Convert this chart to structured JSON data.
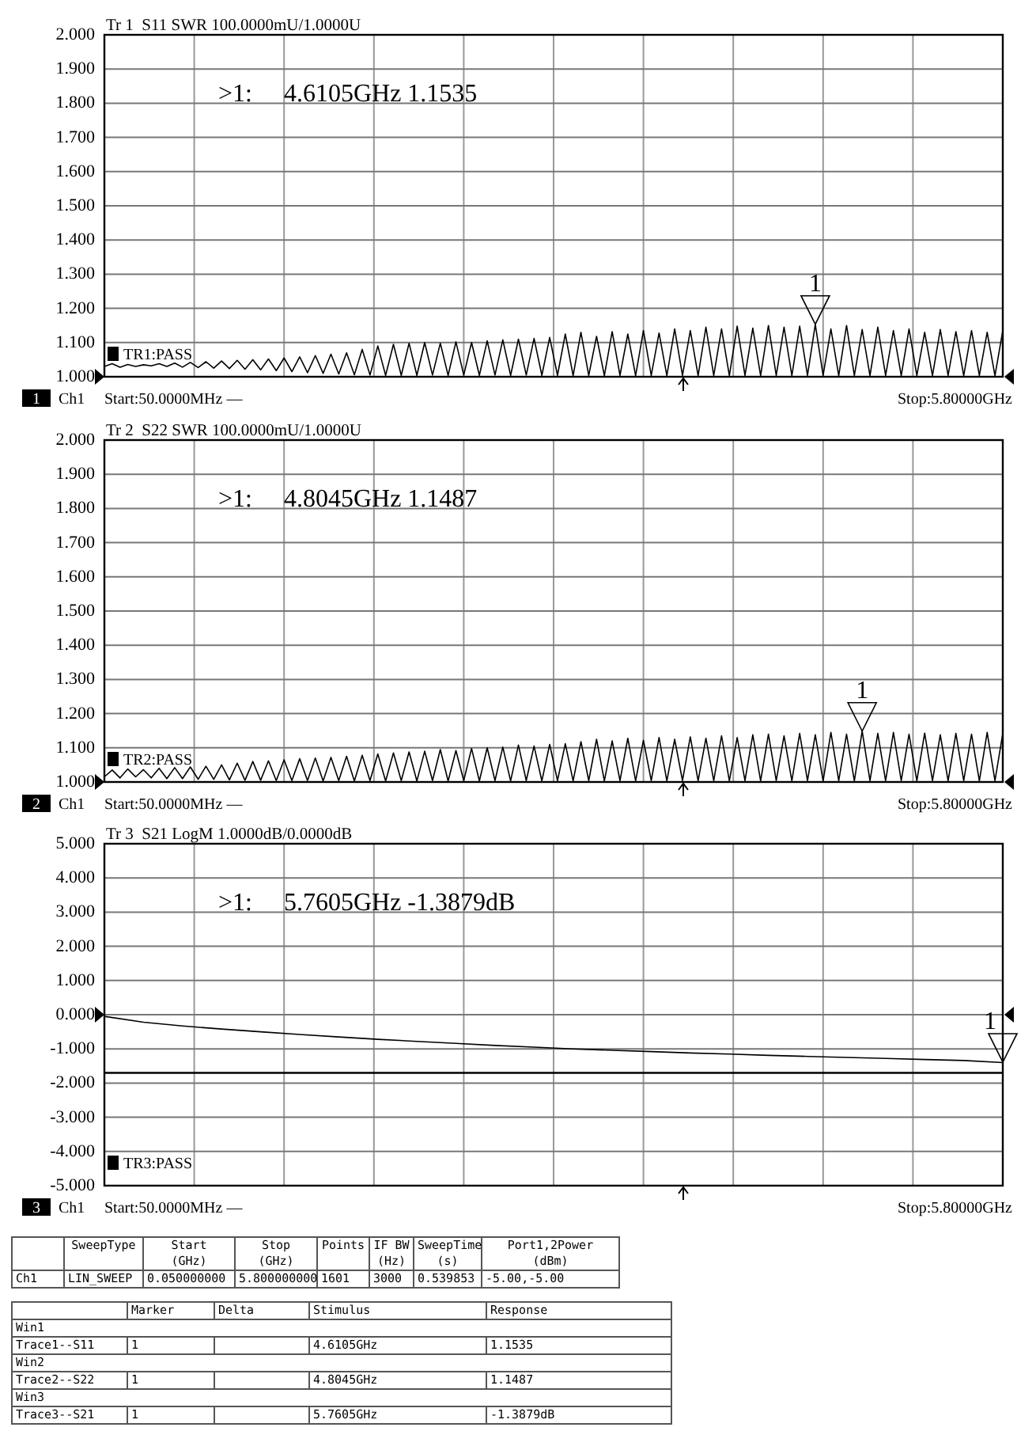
{
  "chart_data": [
    {
      "type": "line",
      "title": "Tr 1  S11 SWR 100.0000mU/1.0000U",
      "grid": true,
      "tick_labels": "y",
      "ylim": [
        1.0,
        2.0
      ],
      "yticks": [
        {
          "value": 1.0,
          "label": "1.000"
        },
        {
          "value": 1.1,
          "label": "1.100"
        },
        {
          "value": 1.2,
          "label": "1.200"
        },
        {
          "value": 1.3,
          "label": "1.300"
        },
        {
          "value": 1.4,
          "label": "1.400"
        },
        {
          "value": 1.5,
          "label": "1.500"
        },
        {
          "value": 1.6,
          "label": "1.600"
        },
        {
          "value": 1.7,
          "label": "1.700"
        },
        {
          "value": 1.8,
          "label": "1.800"
        },
        {
          "value": 1.9,
          "label": "1.900"
        },
        {
          "value": 2.0,
          "label": "2.000"
        }
      ],
      "categories": [
        null,
        null,
        null,
        null,
        null,
        null,
        null,
        null,
        null,
        null,
        null,
        null,
        null,
        null,
        null,
        null,
        null,
        null,
        null,
        null,
        null,
        null,
        null,
        null,
        null,
        null,
        null,
        null,
        null,
        null,
        null,
        null,
        null,
        null,
        null,
        null,
        null,
        null,
        null,
        null,
        null,
        null,
        null,
        null,
        null,
        null,
        null,
        null,
        null,
        null,
        null,
        null,
        null,
        null,
        null,
        null,
        null,
        null,
        null,
        null,
        null,
        null,
        null,
        null,
        null,
        null,
        null,
        null,
        null,
        null,
        null,
        null,
        null,
        null,
        null,
        null,
        null,
        null,
        null,
        null,
        null,
        null,
        null,
        null,
        null,
        null,
        null,
        null,
        null,
        null,
        null,
        null,
        null,
        null,
        null,
        null,
        null,
        null,
        null,
        null,
        null,
        null,
        null,
        null,
        null,
        null,
        null,
        null,
        null,
        null,
        null,
        null,
        null,
        null,
        null,
        null
      ],
      "series": [
        {
          "color": "#000000",
          "values": [
            1.03,
            1.038,
            1.028,
            1.036,
            1.03,
            1.035,
            1.032,
            1.038,
            1.03,
            1.04,
            1.028,
            1.042,
            1.027,
            1.044,
            1.025,
            1.046,
            1.024,
            1.048,
            1.022,
            1.05,
            1.02,
            1.052,
            1.018,
            1.055,
            1.015,
            1.058,
            1.012,
            1.062,
            1.01,
            1.066,
            1.008,
            1.07,
            1.006,
            1.08,
            1.005,
            1.09,
            1.004,
            1.095,
            1.004,
            1.098,
            1.004,
            1.1,
            1.005,
            1.098,
            1.004,
            1.102,
            1.005,
            1.1,
            1.004,
            1.105,
            1.005,
            1.108,
            1.004,
            1.11,
            1.005,
            1.112,
            1.004,
            1.115,
            1.004,
            1.125,
            1.003,
            1.13,
            1.004,
            1.118,
            1.003,
            1.132,
            1.004,
            1.125,
            1.003,
            1.135,
            1.004,
            1.128,
            1.003,
            1.14,
            1.004,
            1.135,
            1.003,
            1.145,
            1.004,
            1.14,
            1.003,
            1.148,
            1.004,
            1.142,
            1.003,
            1.15,
            1.004,
            1.145,
            1.003,
            1.148,
            1.004,
            1.153,
            1.004,
            1.14,
            1.003,
            1.15,
            1.004,
            1.138,
            1.003,
            1.145,
            1.004,
            1.135,
            1.003,
            1.14,
            1.004,
            1.13,
            1.003,
            1.138,
            1.004,
            1.132,
            1.003,
            1.135,
            1.004,
            1.13,
            1.003,
            1.135
          ]
        }
      ],
      "annotations": [
        ">1:     4.6105GHz 1.1535",
        {
          "text": "1",
          "y": 1.1535
        },
        "TR1:PASS",
        "1",
        "Ch1",
        "Start:50.0000MHz —",
        "Stop:5.80000GHz"
      ]
    },
    {
      "type": "line",
      "title": "Tr 2  S22 SWR 100.0000mU/1.0000U",
      "grid": true,
      "tick_labels": "y",
      "ylim": [
        1.0,
        2.0
      ],
      "yticks": [
        {
          "value": 1.0,
          "label": "1.000"
        },
        {
          "value": 1.1,
          "label": "1.100"
        },
        {
          "value": 1.2,
          "label": "1.200"
        },
        {
          "value": 1.3,
          "label": "1.300"
        },
        {
          "value": 1.4,
          "label": "1.400"
        },
        {
          "value": 1.5,
          "label": "1.500"
        },
        {
          "value": 1.6,
          "label": "1.600"
        },
        {
          "value": 1.7,
          "label": "1.700"
        },
        {
          "value": 1.8,
          "label": "1.800"
        },
        {
          "value": 1.9,
          "label": "1.900"
        },
        {
          "value": 2.0,
          "label": "2.000"
        }
      ],
      "categories": [
        null,
        null,
        null,
        null,
        null,
        null,
        null,
        null,
        null,
        null,
        null,
        null,
        null,
        null,
        null,
        null,
        null,
        null,
        null,
        null,
        null,
        null,
        null,
        null,
        null,
        null,
        null,
        null,
        null,
        null,
        null,
        null,
        null,
        null,
        null,
        null,
        null,
        null,
        null,
        null,
        null,
        null,
        null,
        null,
        null,
        null,
        null,
        null,
        null,
        null,
        null,
        null,
        null,
        null,
        null,
        null,
        null,
        null,
        null,
        null,
        null,
        null,
        null,
        null,
        null,
        null,
        null,
        null,
        null,
        null,
        null,
        null,
        null,
        null,
        null,
        null,
        null,
        null,
        null,
        null,
        null,
        null,
        null,
        null,
        null,
        null,
        null,
        null,
        null,
        null,
        null,
        null,
        null,
        null,
        null,
        null,
        null,
        null,
        null,
        null,
        null,
        null,
        null,
        null,
        null,
        null,
        null,
        null,
        null,
        null,
        null,
        null,
        null,
        null,
        null,
        null
      ],
      "series": [
        {
          "color": "#000000",
          "values": [
            1.015,
            1.035,
            1.012,
            1.038,
            1.015,
            1.036,
            1.012,
            1.04,
            1.01,
            1.042,
            1.01,
            1.044,
            1.008,
            1.046,
            1.008,
            1.05,
            1.006,
            1.055,
            1.005,
            1.06,
            1.005,
            1.062,
            1.004,
            1.065,
            1.004,
            1.068,
            1.004,
            1.07,
            1.003,
            1.072,
            1.004,
            1.075,
            1.003,
            1.078,
            1.004,
            1.082,
            1.003,
            1.085,
            1.004,
            1.088,
            1.003,
            1.09,
            1.004,
            1.095,
            1.003,
            1.092,
            1.004,
            1.098,
            1.003,
            1.1,
            1.004,
            1.102,
            1.003,
            1.108,
            1.004,
            1.105,
            1.003,
            1.11,
            1.004,
            1.112,
            1.003,
            1.118,
            1.004,
            1.125,
            1.003,
            1.12,
            1.004,
            1.128,
            1.003,
            1.122,
            1.004,
            1.13,
            1.003,
            1.125,
            1.004,
            1.132,
            1.003,
            1.128,
            1.004,
            1.135,
            1.003,
            1.13,
            1.004,
            1.138,
            1.003,
            1.14,
            1.004,
            1.135,
            1.003,
            1.142,
            1.004,
            1.138,
            1.003,
            1.145,
            1.004,
            1.14,
            1.003,
            1.149,
            1.004,
            1.142,
            1.003,
            1.145,
            1.004,
            1.14,
            1.003,
            1.143,
            1.004,
            1.138,
            1.003,
            1.142,
            1.004,
            1.14,
            1.003,
            1.145,
            1.004,
            1.142
          ]
        }
      ],
      "annotations": [
        ">1:     4.8045GHz 1.1487",
        {
          "text": "1",
          "y": 1.1487
        },
        "TR2:PASS",
        "2",
        "Ch1",
        "Start:50.0000MHz —",
        "Stop:5.80000GHz"
      ]
    },
    {
      "type": "line",
      "title": "Tr 3  S21 LogM 1.0000dB/0.0000dB",
      "grid": true,
      "tick_labels": "y",
      "ylim": [
        -5.0,
        5.0
      ],
      "yticks": [
        {
          "value": -5,
          "label": "-5.000"
        },
        {
          "value": -4,
          "label": "-4.000"
        },
        {
          "value": -3,
          "label": "-3.000"
        },
        {
          "value": -2,
          "label": "-2.000"
        },
        {
          "value": -1,
          "label": "-1.000"
        },
        {
          "value": 0,
          "label": "0.000"
        },
        {
          "value": 1,
          "label": "1.000"
        },
        {
          "value": 2,
          "label": "2.000"
        },
        {
          "value": 3,
          "label": "3.000"
        },
        {
          "value": 4,
          "label": "4.000"
        },
        {
          "value": 5,
          "label": "5.000"
        }
      ],
      "categories": [
        null,
        null,
        null,
        null,
        null,
        null,
        null,
        null,
        null,
        null,
        null,
        null,
        null,
        null,
        null,
        null,
        null,
        null,
        null,
        null,
        null,
        null,
        null,
        null
      ],
      "series": [
        {
          "color": "#000000",
          "values": [
            -0.05,
            -0.22,
            -0.33,
            -0.42,
            -0.5,
            -0.58,
            -0.65,
            -0.72,
            -0.78,
            -0.84,
            -0.9,
            -0.95,
            -1.0,
            -1.04,
            -1.08,
            -1.12,
            -1.15,
            -1.19,
            -1.22,
            -1.25,
            -1.28,
            -1.31,
            -1.34,
            -1.4
          ]
        }
      ],
      "ref_lines": [
        {
          "axis": "y",
          "value": -1.7,
          "color": "#000000"
        }
      ],
      "annotations": [
        ">1:     5.7605GHz -1.3879dB",
        {
          "text": "1",
          "y": -1.3879
        },
        "TR3:PASS",
        "3",
        "Ch1",
        "Start:50.0000MHz —",
        "Stop:5.80000GHz"
      ]
    },
    {
      "type": "other",
      "annotations": [
        "SweepType",
        "Start (GHz)",
        "Stop (GHz)",
        "Points",
        "IF BW (Hz)",
        "SweepTime (s)",
        "Port1,2Power (dBm)",
        "Ch1",
        "LIN_SWEEP",
        "0.050000000",
        "5.800000000",
        "1601",
        "3000",
        "0.539853",
        "-5.00,-5.00"
      ]
    },
    {
      "type": "other",
      "annotations": [
        "Marker",
        "Delta",
        "Stimulus",
        "Response",
        "Win1",
        "Trace1--S11",
        "1",
        "4.6105GHz",
        "1.1535",
        "Win2",
        "Trace2--S22",
        "1",
        "4.8045GHz",
        "1.1487",
        "Win3",
        "Trace3--S21",
        "1",
        "5.7605GHz",
        "-1.3879dB"
      ]
    }
  ]
}
